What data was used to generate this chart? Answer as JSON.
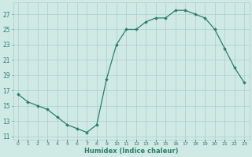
{
  "x": [
    0,
    1,
    2,
    3,
    4,
    5,
    6,
    7,
    8,
    9,
    10,
    11,
    12,
    13,
    14,
    15,
    16,
    17,
    18,
    19,
    20,
    21,
    22,
    23
  ],
  "y": [
    16.5,
    15.5,
    15.0,
    14.5,
    13.5,
    12.5,
    12.0,
    11.5,
    12.5,
    18.5,
    23.0,
    25.0,
    25.0,
    26.0,
    26.5,
    26.5,
    27.5,
    27.5,
    27.0,
    26.5,
    25.0,
    22.5,
    20.0,
    18.0
  ],
  "line_color": "#2e7d6e",
  "marker": "D",
  "marker_size": 1.8,
  "linewidth": 0.9,
  "xlabel": "Humidex (Indice chaleur)",
  "xlim": [
    -0.5,
    23.5
  ],
  "ylim": [
    10.5,
    28.5
  ],
  "yticks": [
    11,
    13,
    15,
    17,
    19,
    21,
    23,
    25,
    27
  ],
  "xtick_labels": [
    "0",
    "1",
    "2",
    "3",
    "4",
    "5",
    "6",
    "7",
    "8",
    "9",
    "10",
    "11",
    "12",
    "13",
    "14",
    "15",
    "16",
    "17",
    "18",
    "19",
    "20",
    "21",
    "22",
    "23"
  ],
  "background_color": "#cfe9e5",
  "grid_color": "#aacfcb",
  "font_color": "#2e7d6e"
}
